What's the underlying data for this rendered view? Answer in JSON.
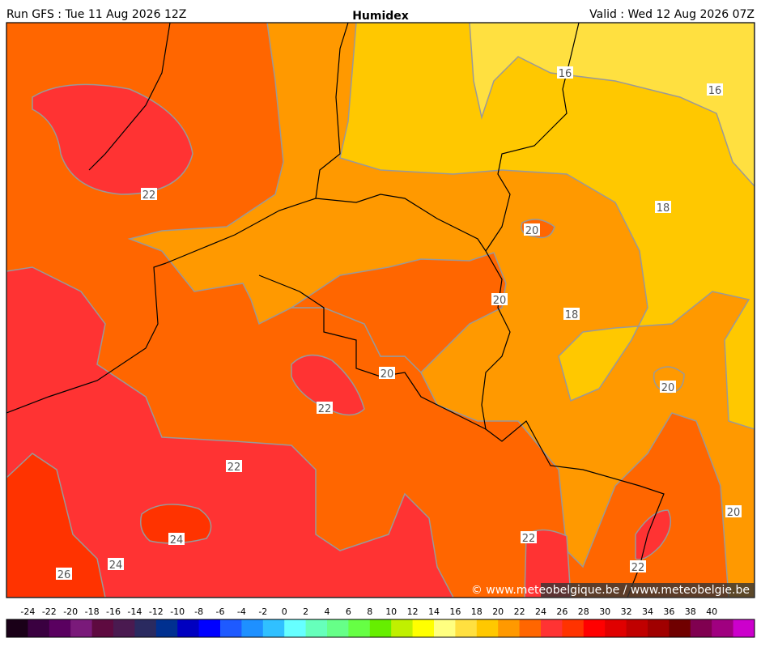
{
  "header": {
    "run": "Run GFS : Tue 11 Aug 2026 12Z",
    "title": "Humidex",
    "valid": "Valid : Wed 12 Aug 2026 07Z"
  },
  "map": {
    "contour_labels": [
      22,
      16,
      16,
      18,
      20,
      20,
      18,
      20,
      22,
      20,
      22,
      20,
      24,
      22,
      24,
      22,
      26
    ]
  },
  "credit": "© www.meteobelgique.be / www.meteobelgie.be",
  "colorbar": {
    "ticks": [
      -24,
      -22,
      -20,
      -18,
      -16,
      -14,
      -12,
      -10,
      -8,
      -6,
      -4,
      -2,
      0,
      2,
      4,
      6,
      8,
      10,
      12,
      14,
      16,
      18,
      20,
      22,
      24,
      26,
      28,
      30,
      32,
      34,
      36,
      38,
      40
    ],
    "colors": [
      "#1a0018",
      "#3a0040",
      "#5a0060",
      "#7a1a7a",
      "#5e0a40",
      "#4a1a50",
      "#2a2a60",
      "#003090",
      "#0000c0",
      "#0000ff",
      "#1e5aff",
      "#1e90ff",
      "#30c0ff",
      "#66ffff",
      "#66ffbb",
      "#66ff88",
      "#66ff44",
      "#66ee00",
      "#c0f000",
      "#ffff00",
      "#ffff80",
      "#ffe040",
      "#ffc800",
      "#ff9900",
      "#ff6600",
      "#ff3333",
      "#ff3300",
      "#ff0000",
      "#e00000",
      "#c00000",
      "#a00000",
      "#700000",
      "#800050",
      "#a00080",
      "#cc00cc"
    ]
  }
}
